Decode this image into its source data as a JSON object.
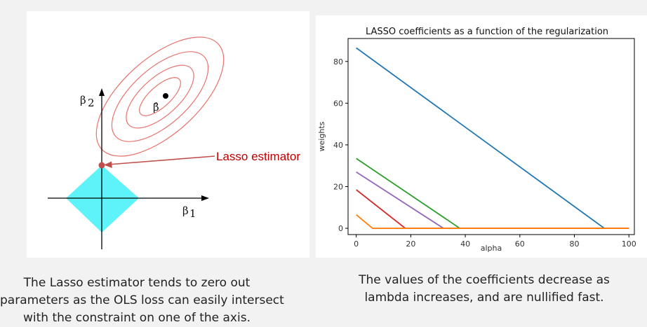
{
  "left_diagram": {
    "y_axis_label": "β",
    "y_axis_sub": "2",
    "x_axis_label": "β",
    "x_axis_sub": "1",
    "estimate_label": "β̂",
    "annotation": "Lasso estimator",
    "colors": {
      "ellipse": "#e8736c",
      "diamond": "#5ef3f8",
      "point": "#c0504d",
      "arrow": "#c0504d"
    }
  },
  "chart_data": {
    "type": "line",
    "title": "LASSO coefficients as a function of the regularization",
    "xlabel": "alpha",
    "ylabel": "weights",
    "xlim": [
      -3,
      102
    ],
    "ylim": [
      -3,
      91
    ],
    "xticks": [
      0,
      20,
      40,
      60,
      80,
      100
    ],
    "yticks": [
      0,
      20,
      40,
      60,
      80
    ],
    "grid": false,
    "series": [
      {
        "color": "#1f77b4",
        "points": [
          [
            0,
            86.5
          ],
          [
            91,
            0
          ],
          [
            100,
            0
          ]
        ]
      },
      {
        "color": "#2ca02c",
        "points": [
          [
            0,
            33.5
          ],
          [
            38,
            0
          ],
          [
            100,
            0
          ]
        ]
      },
      {
        "color": "#9467bd",
        "points": [
          [
            0,
            27
          ],
          [
            32,
            0
          ],
          [
            100,
            0
          ]
        ]
      },
      {
        "color": "#d62728",
        "points": [
          [
            0,
            18.5
          ],
          [
            18,
            0
          ],
          [
            100,
            0
          ]
        ]
      },
      {
        "color": "#ff7f0e",
        "points": [
          [
            0,
            6.5
          ],
          [
            6,
            0
          ],
          [
            100,
            0
          ]
        ]
      }
    ]
  },
  "captions": {
    "left": [
      "The Lasso estimator tends to zero out",
      "parameters as the OLS loss can easily intersect",
      "with the constraint on one of the axis."
    ],
    "right": [
      "The values of the coefficients decrease as",
      "lambda increases, and are nullified fast."
    ]
  }
}
